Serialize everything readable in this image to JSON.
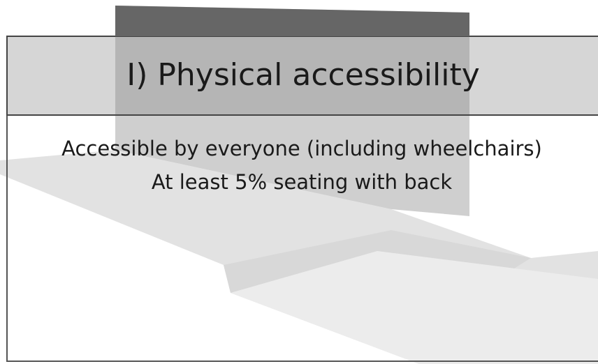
{
  "header": {
    "title": "I) Physical accessibility"
  },
  "body": {
    "lines": [
      "Accessible by everyone (including wheelchairs)",
      "At least 5% seating with back"
    ]
  }
}
